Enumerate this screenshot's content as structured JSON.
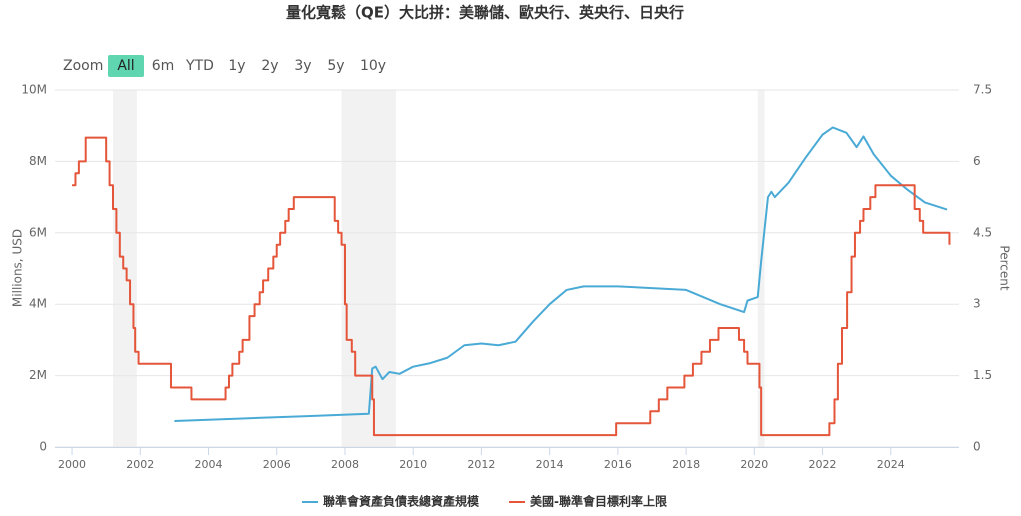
{
  "chart_data": {
    "type": "line",
    "title": "量化寬鬆（QE）大比拼：美聯儲、歐央行、英央行、日央行",
    "range_selector": {
      "label": "Zoom",
      "buttons": [
        "All",
        "6m",
        "YTD",
        "1y",
        "2y",
        "3y",
        "5y",
        "10y"
      ],
      "selected": 0
    },
    "ylabel": "Millions, USD",
    "y2label": "Percent",
    "xlim": [
      1999.5,
      2026.0
    ],
    "xticks": [
      2000,
      2002,
      2004,
      2006,
      2008,
      2010,
      2012,
      2014,
      2016,
      2018,
      2020,
      2022,
      2024
    ],
    "ylim": [
      0,
      10000000
    ],
    "yticks": [
      0,
      {
        "value": 2000000,
        "label": "2M"
      },
      {
        "value": 4000000,
        "label": "4M"
      },
      {
        "value": 6000000,
        "label": "6M"
      },
      {
        "value": 8000000,
        "label": "8M"
      },
      {
        "value": 10000000,
        "label": "10M"
      }
    ],
    "y2lim": [
      0,
      7.5
    ],
    "y2ticks": [
      0,
      1.5,
      3,
      4.5,
      6,
      7.5
    ],
    "grid": true,
    "plot_bands": [
      [
        2001.2,
        2001.9
      ],
      [
        2007.9,
        2009.5
      ],
      [
        2020.1,
        2020.3
      ]
    ],
    "band_color": "#f2f2f2",
    "legend": "bottom",
    "series": [
      {
        "name": "聯準會資產負債表總資產規模",
        "color": "#4aaad6",
        "axis": "y",
        "step": false,
        "x": [
          2003.0,
          2005.0,
          2007.0,
          2008.7,
          2008.8,
          2008.9,
          2009.1,
          2009.3,
          2009.6,
          2010.0,
          2010.5,
          2011.0,
          2011.5,
          2012.0,
          2012.5,
          2013.0,
          2013.5,
          2014.0,
          2014.5,
          2015.0,
          2016.0,
          2017.0,
          2018.0,
          2019.0,
          2019.7,
          2019.8,
          2020.1,
          2020.2,
          2020.4,
          2020.5,
          2020.6,
          2021.0,
          2021.5,
          2022.0,
          2022.3,
          2022.7,
          2023.0,
          2023.2,
          2023.5,
          2024.0,
          2024.5,
          2025.0,
          2025.65
        ],
        "values": [
          730000,
          800000,
          870000,
          930000,
          2200000,
          2250000,
          1900000,
          2100000,
          2050000,
          2250000,
          2350000,
          2500000,
          2850000,
          2900000,
          2850000,
          2950000,
          3500000,
          4000000,
          4400000,
          4500000,
          4500000,
          4450000,
          4400000,
          4000000,
          3780000,
          4100000,
          4200000,
          5200000,
          7000000,
          7150000,
          7000000,
          7400000,
          8100000,
          8750000,
          8950000,
          8800000,
          8400000,
          8700000,
          8200000,
          7600000,
          7200000,
          6850000,
          6650000
        ]
      },
      {
        "name": "美國-聯準會目標利率上限",
        "color": "#e4553a",
        "axis": "y2",
        "step": true,
        "x": [
          2000.0,
          2000.1,
          2000.2,
          2000.4,
          2001.0,
          2001.1,
          2001.2,
          2001.3,
          2001.4,
          2001.5,
          2001.6,
          2001.7,
          2001.8,
          2001.85,
          2001.95,
          2002.9,
          2003.5,
          2004.5,
          2004.6,
          2004.7,
          2004.9,
          2005.0,
          2005.2,
          2005.35,
          2005.5,
          2005.6,
          2005.75,
          2005.9,
          2006.0,
          2006.1,
          2006.25,
          2006.35,
          2006.5,
          2007.7,
          2007.8,
          2007.9,
          2008.0,
          2008.05,
          2008.2,
          2008.3,
          2008.8,
          2008.85,
          2008.95,
          2015.95,
          2016.95,
          2017.2,
          2017.45,
          2017.95,
          2018.2,
          2018.45,
          2018.7,
          2018.95,
          2019.55,
          2019.7,
          2019.8,
          2020.15,
          2020.2,
          2022.2,
          2022.35,
          2022.45,
          2022.57,
          2022.72,
          2022.85,
          2022.95,
          2023.1,
          2023.2,
          2023.4,
          2023.55,
          2024.7,
          2024.85,
          2024.95,
          2025.7,
          2025.72
        ],
        "values": [
          5.5,
          5.75,
          6.0,
          6.5,
          6.0,
          5.5,
          5.0,
          4.5,
          4.0,
          3.75,
          3.5,
          3.0,
          2.5,
          2.0,
          1.75,
          1.25,
          1.0,
          1.25,
          1.5,
          1.75,
          2.0,
          2.25,
          2.75,
          3.0,
          3.25,
          3.5,
          3.75,
          4.0,
          4.25,
          4.5,
          4.75,
          5.0,
          5.25,
          4.75,
          4.5,
          4.25,
          3.0,
          2.25,
          2.0,
          1.5,
          1.0,
          0.25,
          0.25,
          0.5,
          0.75,
          1.0,
          1.25,
          1.5,
          1.75,
          2.0,
          2.25,
          2.5,
          2.25,
          2.0,
          1.75,
          1.25,
          0.25,
          0.5,
          1.0,
          1.75,
          2.5,
          3.25,
          4.0,
          4.5,
          4.75,
          5.0,
          5.25,
          5.5,
          5.0,
          4.75,
          4.5,
          4.5,
          4.25
        ]
      }
    ]
  }
}
